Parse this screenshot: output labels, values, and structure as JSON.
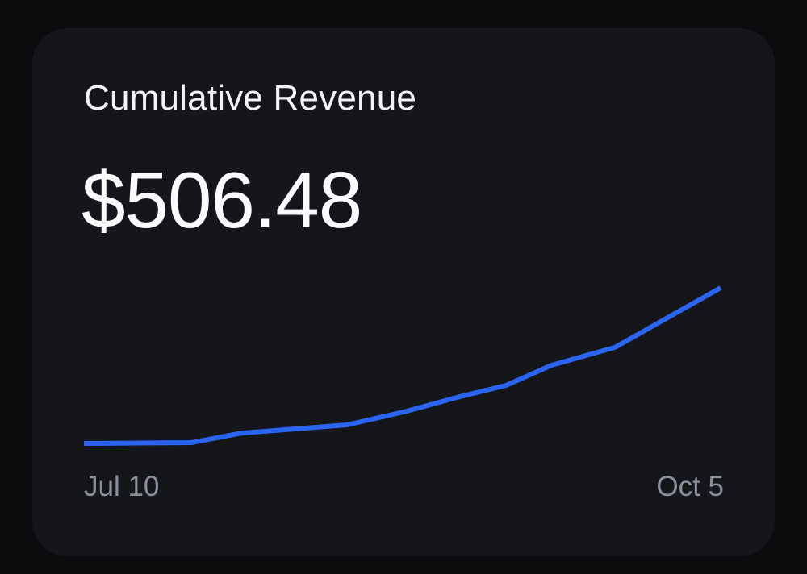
{
  "card": {
    "title": "Cumulative Revenue",
    "value": "$506.48",
    "x_start_label": "Jul 10",
    "x_end_label": "Oct 5"
  },
  "colors": {
    "page_bg": "#0b0c0e",
    "card_bg": "#15161a",
    "title_text": "#f2f3f5",
    "value_text": "#fafbfc",
    "axis_label_text": "#8b919c",
    "line": "#2b64f0"
  },
  "chart_data": {
    "type": "line",
    "title": "Cumulative Revenue",
    "current_value": 506.48,
    "currency_symbol": "$",
    "x_axis": {
      "start_label": "Jul 10",
      "end_label": "Oct 5",
      "ticks_visible": false
    },
    "y_axis": {
      "visible": false,
      "max_value": 506.48
    },
    "grid": false,
    "legend": false,
    "line_color": "#2b64f0",
    "line_width": 6,
    "points": [
      {
        "x_frac": 0.0,
        "value_frac": 0.0
      },
      {
        "x_frac": 0.169,
        "value_frac": 0.005
      },
      {
        "x_frac": 0.248,
        "value_frac": 0.067
      },
      {
        "x_frac": 0.413,
        "value_frac": 0.119
      },
      {
        "x_frac": 0.502,
        "value_frac": 0.202
      },
      {
        "x_frac": 0.591,
        "value_frac": 0.301
      },
      {
        "x_frac": 0.663,
        "value_frac": 0.373
      },
      {
        "x_frac": 0.735,
        "value_frac": 0.503
      },
      {
        "x_frac": 0.834,
        "value_frac": 0.617
      },
      {
        "x_frac": 1.0,
        "value_frac": 1.0
      }
    ]
  }
}
